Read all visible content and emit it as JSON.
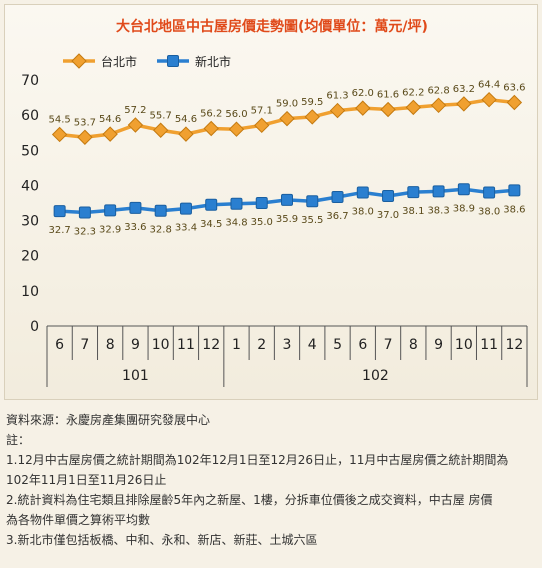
{
  "chart_data": {
    "type": "line",
    "title": "大台北地區中古屋房價走勢圖(均價單位：萬元/坪)",
    "categories": [
      "6",
      "7",
      "8",
      "9",
      "10",
      "11",
      "12",
      "1",
      "2",
      "3",
      "4",
      "5",
      "6",
      "7",
      "8",
      "9",
      "10",
      "11",
      "12"
    ],
    "year_groups": [
      {
        "label": "101",
        "start": 0,
        "end": 6
      },
      {
        "label": "102",
        "start": 7,
        "end": 18
      }
    ],
    "ylim": [
      0,
      70
    ],
    "yticks": [
      0,
      10,
      20,
      30,
      40,
      50,
      60,
      70
    ],
    "grid": false,
    "legend_position": "top-left",
    "series": [
      {
        "name": "台北市",
        "color": "#f0a030",
        "marker": "diamond",
        "values": [
          54.5,
          53.7,
          54.6,
          57.2,
          55.7,
          54.6,
          56.2,
          56.0,
          57.1,
          59.0,
          59.5,
          61.3,
          62.0,
          61.6,
          62.2,
          62.8,
          63.2,
          64.4,
          63.6
        ],
        "labels": [
          "54.5",
          "53.7",
          "54.6",
          "57.2",
          "55.7",
          "54.6",
          "56.2",
          "56.0",
          "57.1",
          "59.0",
          "59.5",
          "61.3",
          "62.0",
          "61.6",
          "62.2",
          "62.8",
          "63.2",
          "64.4",
          "63.6"
        ]
      },
      {
        "name": "新北市",
        "color": "#2a7fd0",
        "marker": "square",
        "values": [
          32.7,
          32.3,
          32.9,
          33.6,
          32.8,
          33.4,
          34.5,
          34.8,
          35.0,
          35.9,
          35.5,
          36.7,
          38.0,
          37.0,
          38.1,
          38.3,
          38.9,
          38.0,
          38.6
        ],
        "labels": [
          "32.7",
          "32.3",
          "32.9",
          "33.6",
          "32.8",
          "33.4",
          "34.5",
          "34.8",
          "35.0",
          "35.9",
          "35.5",
          "36.7",
          "38.0",
          "37.0",
          "38.1",
          "38.3",
          "38.9",
          "38.0",
          "38.6"
        ]
      }
    ]
  },
  "notes": {
    "source": "資料來源：永慶房產集團研究發展中心",
    "heading": "註：",
    "lines": [
      "1.12月中古屋房價之統計期間為102年12月1日至12月26日止，11月中古屋房價之統計期間為",
      "102年11月1日至11月26日止",
      "2.統計資料為住宅類且排除屋齡5年內之新屋、1樓，分拆車位價後之成交資料，中古屋 房價",
      "為各物件單價之算術平均數",
      "3.新北市僅包括板橋、中和、永和、新店、新莊、土城六區"
    ]
  }
}
